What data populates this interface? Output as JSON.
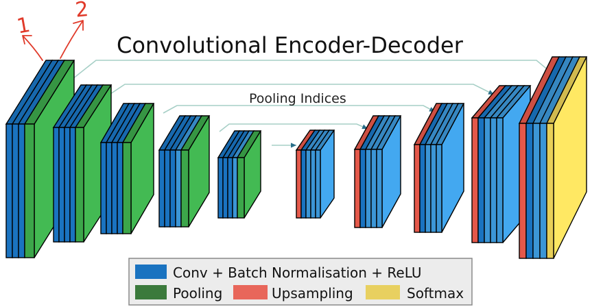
{
  "title": "Convolutional Encoder-Decoder",
  "connection_label": "Pooling Indices",
  "handwritten_marks": [
    "1",
    "2"
  ],
  "colors": {
    "conv": "#1a73c0",
    "conv_light": "#3c96d6",
    "pooling": "#3ca64a",
    "upsampling": "#e4584a",
    "softmax": "#e8cf58",
    "arrow": "#a6cfc6",
    "annotation": "#e03a2a",
    "legend_pooling": "#3b7a3c",
    "legend_upsampling": "#e8665a",
    "legend_softmax": "#e8d060"
  },
  "legend": [
    {
      "label": "Conv + Batch Normalisation + ReLU",
      "color_key": "conv"
    },
    {
      "label": "Pooling",
      "color_key": "legend_pooling"
    },
    {
      "label": "Upsampling",
      "color_key": "legend_upsampling"
    },
    {
      "label": "Softmax",
      "color_key": "legend_softmax"
    }
  ],
  "encoder": [
    {
      "name": "encoder-stage-1",
      "layers": [
        "conv",
        "conv",
        "conv",
        "pooling"
      ]
    },
    {
      "name": "encoder-stage-2",
      "layers": [
        "conv",
        "conv",
        "conv",
        "conv",
        "pooling"
      ]
    },
    {
      "name": "encoder-stage-3",
      "layers": [
        "conv",
        "conv",
        "conv",
        "conv",
        "pooling"
      ]
    },
    {
      "name": "encoder-stage-4",
      "layers": [
        "conv",
        "conv",
        "conv",
        "conv",
        "pooling"
      ]
    },
    {
      "name": "encoder-stage-5",
      "layers": [
        "conv",
        "conv",
        "conv",
        "conv",
        "pooling"
      ]
    }
  ],
  "decoder": [
    {
      "name": "decoder-stage-1",
      "layers": [
        "upsampling",
        "conv",
        "conv",
        "conv",
        "conv"
      ]
    },
    {
      "name": "decoder-stage-2",
      "layers": [
        "upsampling",
        "conv",
        "conv",
        "conv",
        "conv"
      ]
    },
    {
      "name": "decoder-stage-3",
      "layers": [
        "upsampling",
        "conv",
        "conv",
        "conv",
        "conv"
      ]
    },
    {
      "name": "decoder-stage-4",
      "layers": [
        "upsampling",
        "conv",
        "conv",
        "conv",
        "conv"
      ]
    },
    {
      "name": "decoder-stage-5",
      "layers": [
        "upsampling",
        "conv",
        "conv",
        "conv",
        "softmax"
      ]
    }
  ]
}
